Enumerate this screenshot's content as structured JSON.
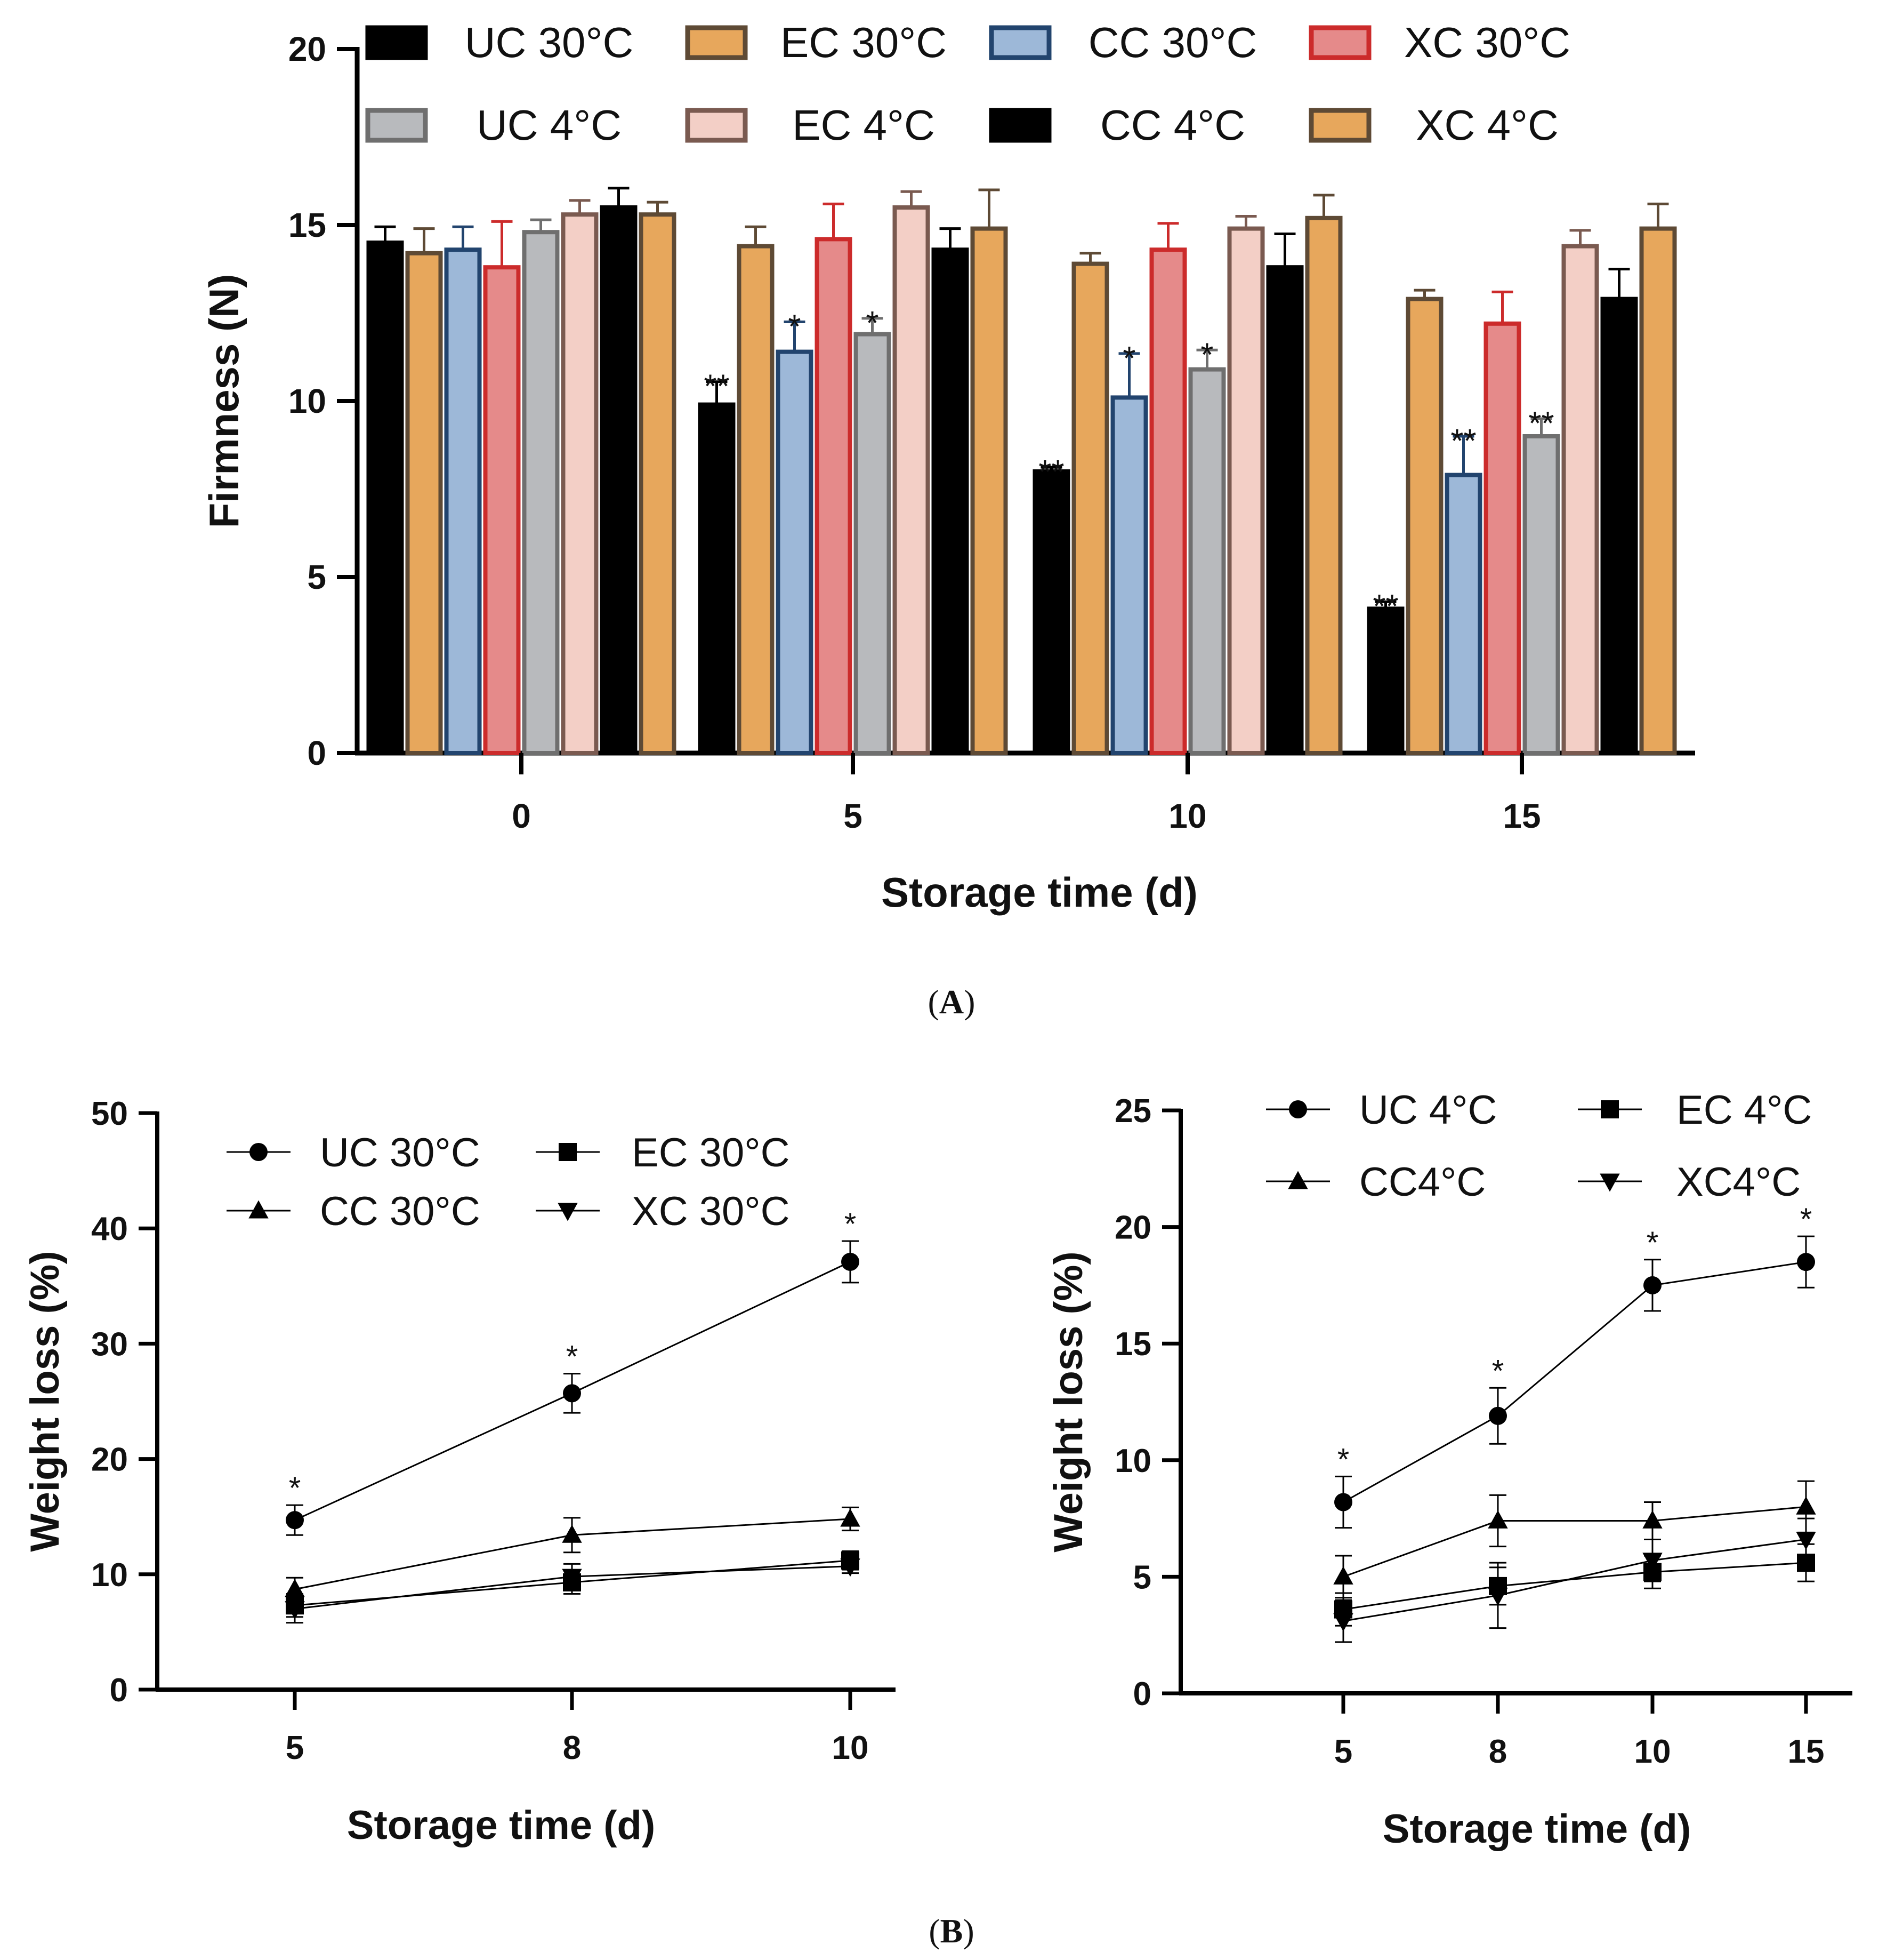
{
  "panels": {
    "a_label": {
      "open": "(",
      "letter": "A",
      "close": ")"
    },
    "b_label": {
      "open": "(",
      "letter": "B",
      "close": ")"
    }
  },
  "chart_data": [
    {
      "id": "A",
      "type": "bar",
      "title": "",
      "xlabel": "Storage time (d)",
      "ylabel": "Firmness (N)",
      "categories": [
        "0",
        "5",
        "10",
        "15"
      ],
      "ylim": [
        0,
        20
      ],
      "yticks": [
        "0",
        "5",
        "10",
        "15",
        "20"
      ],
      "legend_position": "top",
      "series": [
        {
          "name": "UC 30°C",
          "fill": "#000000",
          "stroke": "#000000",
          "values": [
            14.5,
            9.9,
            8.0,
            4.1
          ],
          "errors": [
            0.45,
            0.65,
            0.12,
            0.2
          ],
          "sig": [
            "",
            "**",
            "**",
            "**"
          ]
        },
        {
          "name": "EC 30°C",
          "fill": "#e7a75c",
          "stroke": "#5e4a35",
          "values": [
            14.2,
            14.4,
            13.9,
            12.9
          ],
          "errors": [
            0.7,
            0.55,
            0.3,
            0.25
          ],
          "sig": [
            "",
            "",
            "",
            ""
          ]
        },
        {
          "name": "CC 30°C",
          "fill": "#9db8d8",
          "stroke": "#22446e",
          "values": [
            14.3,
            11.4,
            10.1,
            7.9
          ],
          "errors": [
            0.65,
            0.85,
            1.25,
            1.1
          ],
          "sig": [
            "",
            "*",
            "*",
            "**"
          ]
        },
        {
          "name": "XC 30°C",
          "fill": "#e58a8a",
          "stroke": "#cc2b2b",
          "values": [
            13.8,
            14.6,
            14.3,
            12.2
          ],
          "errors": [
            1.3,
            1.0,
            0.75,
            0.9
          ],
          "sig": [
            "",
            "",
            "",
            ""
          ]
        },
        {
          "name": "UC 4°C",
          "fill": "#b8babd",
          "stroke": "#6f6f6f",
          "values": [
            14.8,
            11.9,
            10.9,
            9.0
          ],
          "errors": [
            0.35,
            0.45,
            0.55,
            0.5
          ],
          "sig": [
            "",
            "*",
            "*",
            "**"
          ]
        },
        {
          "name": "EC 4°C",
          "fill": "#f3cfc6",
          "stroke": "#7a5a50",
          "values": [
            15.3,
            15.5,
            14.9,
            14.4
          ],
          "errors": [
            0.4,
            0.45,
            0.35,
            0.45
          ],
          "sig": [
            "",
            "",
            "",
            ""
          ]
        },
        {
          "name": "CC 4°C",
          "fill": "#000000",
          "stroke": "#000000",
          "values": [
            15.5,
            14.3,
            13.8,
            12.9
          ],
          "errors": [
            0.55,
            0.6,
            0.95,
            0.85
          ],
          "sig": [
            "",
            "",
            "",
            ""
          ]
        },
        {
          "name": "XC 4°C",
          "fill": "#e7a75c",
          "stroke": "#5e4a35",
          "values": [
            15.3,
            14.9,
            15.2,
            14.9
          ],
          "errors": [
            0.35,
            1.1,
            0.65,
            0.7
          ],
          "sig": [
            "",
            "",
            "",
            ""
          ]
        }
      ]
    },
    {
      "id": "B-left",
      "type": "line",
      "title": "",
      "xlabel": "Storage time (d)",
      "ylabel": "Weight loss (%)",
      "x": [
        "5",
        "8",
        "10"
      ],
      "ylim": [
        0,
        50
      ],
      "yticks": [
        "0",
        "10",
        "20",
        "30",
        "40",
        "50"
      ],
      "legend_position": "top",
      "series": [
        {
          "name": "UC 30°C",
          "marker": "circle",
          "values": [
            14.7,
            25.7,
            37.1
          ],
          "errors": [
            1.3,
            1.7,
            1.8
          ],
          "sig": [
            "*",
            "*",
            "*"
          ]
        },
        {
          "name": "EC 30°C",
          "marker": "square",
          "values": [
            7.3,
            9.3,
            11.2
          ],
          "errors": [
            1.0,
            1.0,
            0.8
          ],
          "sig": [
            "",
            "",
            ""
          ]
        },
        {
          "name": "CC 30°C",
          "marker": "triangle-up",
          "values": [
            8.7,
            13.4,
            14.8
          ],
          "errors": [
            1.0,
            1.5,
            1.0
          ],
          "sig": [
            "",
            "",
            ""
          ]
        },
        {
          "name": "XC 30°C",
          "marker": "triangle-down",
          "values": [
            7.0,
            9.8,
            10.7
          ],
          "errors": [
            1.2,
            1.1,
            0.6
          ],
          "sig": [
            "",
            "",
            ""
          ]
        }
      ]
    },
    {
      "id": "B-right",
      "type": "line",
      "title": "",
      "xlabel": "Storage time (d)",
      "ylabel": "Weight loss (%)",
      "x": [
        "5",
        "8",
        "10",
        "15"
      ],
      "ylim": [
        0,
        25
      ],
      "yticks": [
        "0",
        "5",
        "10",
        "15",
        "20",
        "25"
      ],
      "legend_position": "top",
      "series": [
        {
          "name": "UC 4°C",
          "marker": "circle",
          "values": [
            8.2,
            11.9,
            17.5,
            18.5
          ],
          "errors": [
            1.1,
            1.2,
            1.1,
            1.1
          ],
          "sig": [
            "*",
            "*",
            "*",
            "*"
          ]
        },
        {
          "name": "EC 4°C",
          "marker": "square",
          "values": [
            3.6,
            4.6,
            5.2,
            5.6
          ],
          "errors": [
            0.7,
            0.8,
            0.7,
            0.8
          ],
          "sig": [
            "",
            "",
            "",
            ""
          ]
        },
        {
          "name": "CC4°C",
          "marker": "triangle-up",
          "values": [
            5.0,
            7.4,
            7.4,
            8.0
          ],
          "errors": [
            0.9,
            1.1,
            0.8,
            1.1
          ],
          "sig": [
            "",
            "",
            "",
            ""
          ]
        },
        {
          "name": "XC4°C",
          "marker": "triangle-down",
          "values": [
            3.1,
            4.2,
            5.7,
            6.6
          ],
          "errors": [
            0.9,
            1.4,
            0.9,
            0.9
          ],
          "sig": [
            "",
            "",
            "",
            ""
          ]
        }
      ]
    }
  ]
}
